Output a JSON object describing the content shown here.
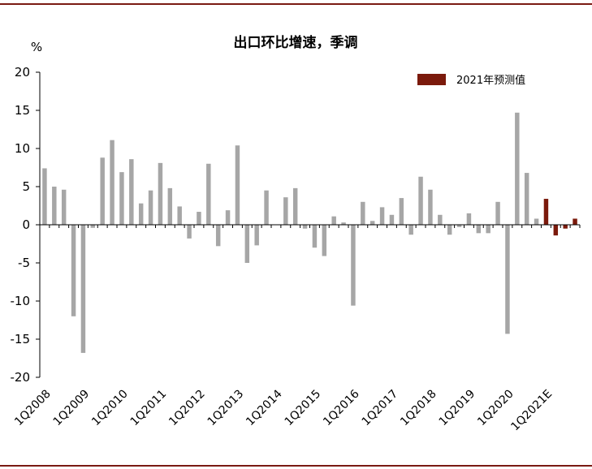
{
  "chart_data": {
    "type": "bar",
    "title": "出口环比增速，季调",
    "ylabel": "%",
    "ylim": [
      -20,
      20
    ],
    "yticks": [
      20,
      15,
      10,
      5,
      0,
      -5,
      -10,
      -15,
      -20
    ],
    "x_tick_labels": [
      "1Q2008",
      "1Q2009",
      "1Q2010",
      "1Q2011",
      "1Q2012",
      "1Q2013",
      "1Q2014",
      "1Q2015",
      "1Q2016",
      "1Q2017",
      "1Q2018",
      "1Q2019",
      "1Q2020",
      "1Q2021E"
    ],
    "legend": {
      "label": "2021年预测值",
      "placement": "top-right"
    },
    "colors": {
      "actual": "#a6a6a6",
      "forecast": "#7b1a0c",
      "rule": "#7a1a12"
    },
    "series": [
      {
        "values": [
          7.4,
          5.0,
          4.6,
          -12.0,
          -16.8,
          -0.4,
          8.8,
          11.1,
          6.9,
          8.6,
          2.8,
          4.5,
          8.1,
          4.8,
          2.4,
          -1.8,
          1.7,
          8.0,
          -2.8,
          1.9,
          10.4,
          -5.0,
          -2.7,
          4.5,
          0.0,
          3.6,
          4.8,
          -0.5,
          -3.0,
          -4.1,
          1.1,
          0.3,
          -10.6,
          3.0,
          0.5,
          2.3,
          1.3,
          3.5,
          -1.3,
          6.3,
          4.6,
          1.3,
          -1.3,
          -0.3,
          1.5,
          -1.1,
          -1.1,
          3.0,
          -14.3,
          14.7,
          6.8,
          0.8
        ]
      },
      {
        "name": "2021年预测值",
        "values": [
          3.4,
          -1.4,
          -0.5,
          0.8
        ]
      }
    ]
  }
}
